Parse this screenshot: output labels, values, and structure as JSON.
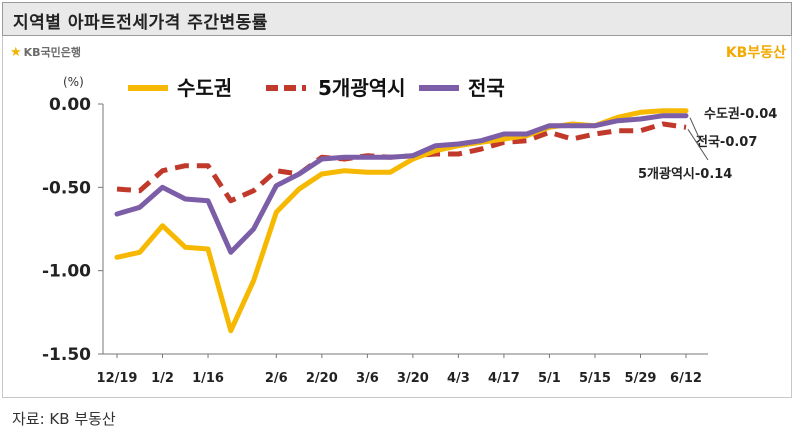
{
  "header": {
    "title": "지역별 아파트전세가격 주간변동률"
  },
  "brand": {
    "bank": "KB국민은행",
    "bank_mark": "★",
    "service": "KB부동산"
  },
  "source": "자료: KB 부동산",
  "chart_data": {
    "type": "line",
    "ylabel": "(%)",
    "ylim": [
      -1.5,
      0.0
    ],
    "yticks": [
      "0.00",
      "-0.50",
      "-1.00",
      "-1.50"
    ],
    "categories": [
      "12/19",
      "12/26",
      "1/2",
      "1/9",
      "1/16",
      "1/23",
      "1/30",
      "2/6",
      "2/13",
      "2/20",
      "2/27",
      "3/6",
      "3/13",
      "3/20",
      "3/27",
      "4/3",
      "4/10",
      "4/17",
      "4/24",
      "5/1",
      "5/8",
      "5/15",
      "5/22",
      "5/29",
      "6/5",
      "6/12"
    ],
    "tick_labels": [
      "12/19",
      "1/2",
      "1/16",
      "2/6",
      "2/20",
      "3/6",
      "3/20",
      "4/3",
      "4/17",
      "5/1",
      "5/15",
      "5/29",
      "6/12"
    ],
    "legend_position": "top",
    "series": [
      {
        "name": "수도권",
        "color": "#F6B800",
        "dash": false,
        "values": [
          -0.92,
          -0.89,
          -0.73,
          -0.86,
          -0.87,
          -1.36,
          -1.06,
          -0.65,
          -0.51,
          -0.42,
          -0.4,
          -0.41,
          -0.41,
          -0.33,
          -0.28,
          -0.25,
          -0.23,
          -0.21,
          -0.19,
          -0.14,
          -0.12,
          -0.13,
          -0.08,
          -0.05,
          -0.04,
          -0.04
        ],
        "end_label": "수도권-0.04"
      },
      {
        "name": "5개광역시",
        "color": "#C0392B",
        "dash": true,
        "values": [
          -0.51,
          -0.52,
          -0.4,
          -0.37,
          -0.37,
          -0.58,
          -0.52,
          -0.4,
          -0.42,
          -0.32,
          -0.33,
          -0.31,
          -0.32,
          -0.31,
          -0.3,
          -0.3,
          -0.27,
          -0.23,
          -0.22,
          -0.17,
          -0.21,
          -0.18,
          -0.16,
          -0.16,
          -0.12,
          -0.14
        ],
        "end_label": "5개광역시-0.14"
      },
      {
        "name": "전국",
        "color": "#7B5EA7",
        "dash": false,
        "values": [
          -0.66,
          -0.62,
          -0.5,
          -0.57,
          -0.58,
          -0.89,
          -0.75,
          -0.49,
          -0.42,
          -0.33,
          -0.32,
          -0.32,
          -0.32,
          -0.31,
          -0.25,
          -0.24,
          -0.22,
          -0.18,
          -0.18,
          -0.13,
          -0.13,
          -0.13,
          -0.1,
          -0.09,
          -0.07,
          -0.07
        ],
        "end_label": "전국-0.07"
      }
    ]
  }
}
